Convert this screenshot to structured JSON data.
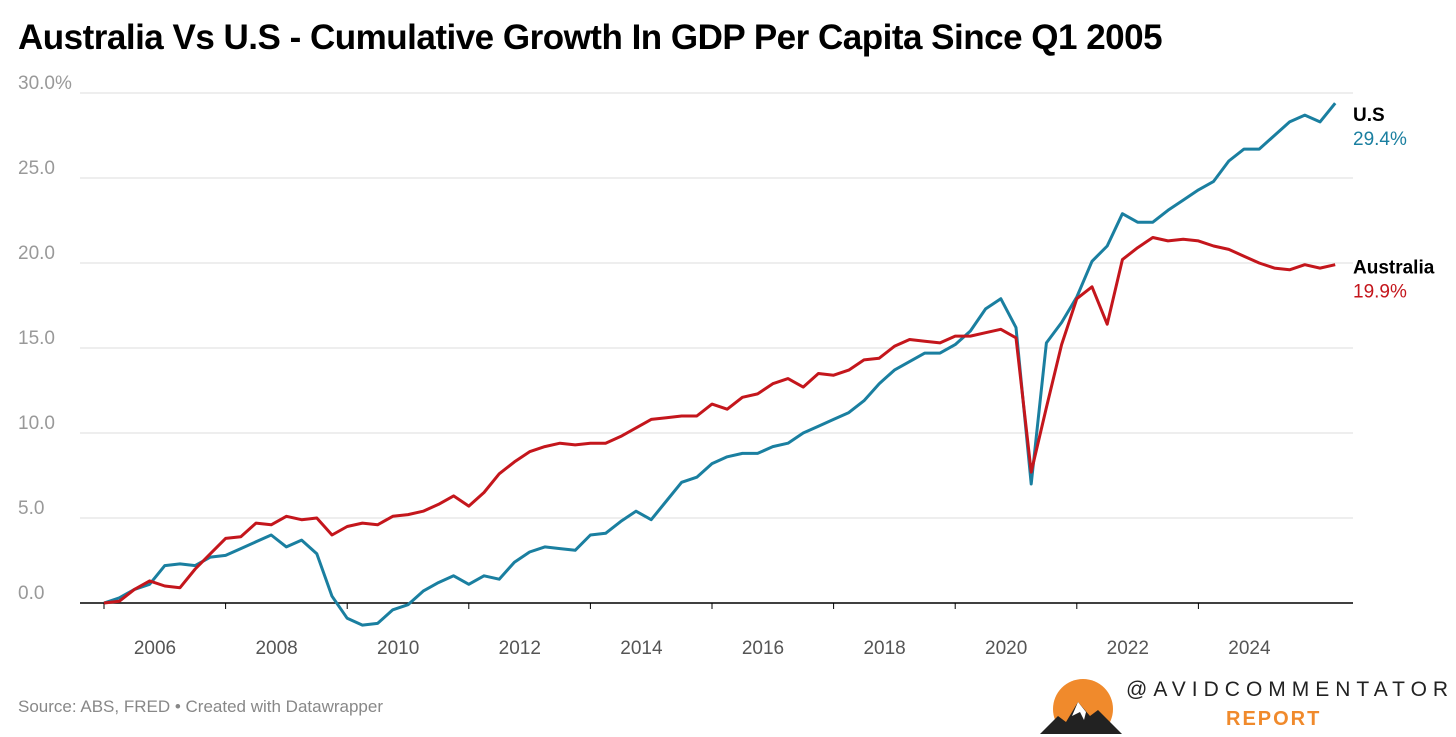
{
  "title": "Australia Vs U.S - Cumulative Growth In GDP Per Capita Since Q1 2005",
  "source": "Source: ABS, FRED • Created with Datawrapper",
  "logo": {
    "handle": "@AVIDCOMMENTATOR",
    "report": "REPORT"
  },
  "colors": {
    "us": "#1a7fa0",
    "australia": "#c4161c",
    "grid": "#dddddd",
    "axis_text": "#999999",
    "label_text": "#555555"
  },
  "chart_data": {
    "type": "line",
    "title": "Australia Vs U.S - Cumulative Growth In GDP Per Capita Since Q1 2005",
    "xlabel": "",
    "ylabel": "",
    "x_start": "2005 Q1",
    "x_step": "quarter",
    "ylim": [
      -2,
      30
    ],
    "y_ticks": [
      0,
      5,
      10,
      15,
      20,
      25,
      30
    ],
    "y_tick_labels": [
      "0.0",
      "5.0",
      "10.0",
      "15.0",
      "20.0",
      "25.0",
      "30.0%"
    ],
    "x_ticks": [
      2006,
      2008,
      2010,
      2012,
      2014,
      2016,
      2018,
      2020,
      2022,
      2024
    ],
    "x_tick_labels": [
      "2006",
      "2008",
      "2010",
      "2012",
      "2014",
      "2016",
      "2018",
      "2020",
      "2022",
      "2024"
    ],
    "grid": true,
    "series": [
      {
        "name": "U.S",
        "end_label": "29.4%",
        "color": "#1a7fa0",
        "values": [
          0,
          0.3,
          0.8,
          1.1,
          2.2,
          2.3,
          2.2,
          2.7,
          2.8,
          3.2,
          3.6,
          4.0,
          3.3,
          3.7,
          2.9,
          0.4,
          -0.9,
          -1.3,
          -1.2,
          -0.4,
          -0.1,
          0.7,
          1.2,
          1.6,
          1.1,
          1.6,
          1.4,
          2.4,
          3.0,
          3.3,
          3.2,
          3.1,
          4.0,
          4.1,
          4.8,
          5.4,
          4.9,
          6.0,
          7.1,
          7.4,
          8.2,
          8.6,
          8.8,
          8.8,
          9.2,
          9.4,
          10.0,
          10.4,
          10.8,
          11.2,
          11.9,
          12.9,
          13.7,
          14.2,
          14.7,
          14.7,
          15.2,
          16.0,
          17.3,
          17.9,
          16.2,
          7.0,
          15.3,
          16.5,
          18.0,
          20.1,
          21.0,
          22.9,
          22.4,
          22.4,
          23.1,
          23.7,
          24.3,
          24.8,
          26.0,
          26.7,
          26.7,
          27.5,
          28.3,
          28.7,
          28.3,
          29.4
        ]
      },
      {
        "name": "Australia",
        "end_label": "19.9%",
        "color": "#c4161c",
        "values": [
          0,
          0.1,
          0.8,
          1.3,
          1.0,
          0.9,
          2.0,
          2.9,
          3.8,
          3.9,
          4.7,
          4.6,
          5.1,
          4.9,
          5.0,
          4.0,
          4.5,
          4.7,
          4.6,
          5.1,
          5.2,
          5.4,
          5.8,
          6.3,
          5.7,
          6.5,
          7.6,
          8.3,
          8.9,
          9.2,
          9.4,
          9.3,
          9.4,
          9.4,
          9.8,
          10.3,
          10.8,
          10.9,
          11.0,
          11.0,
          11.7,
          11.4,
          12.1,
          12.3,
          12.9,
          13.2,
          12.7,
          13.5,
          13.4,
          13.7,
          14.3,
          14.4,
          15.1,
          15.5,
          15.4,
          15.3,
          15.7,
          15.7,
          15.9,
          16.1,
          15.6,
          7.7,
          11.5,
          15.2,
          17.9,
          18.6,
          16.4,
          20.2,
          20.9,
          21.5,
          21.3,
          21.4,
          21.3,
          21.0,
          20.8,
          20.4,
          20.0,
          19.7,
          19.6,
          19.9,
          19.7,
          19.9
        ]
      }
    ]
  }
}
